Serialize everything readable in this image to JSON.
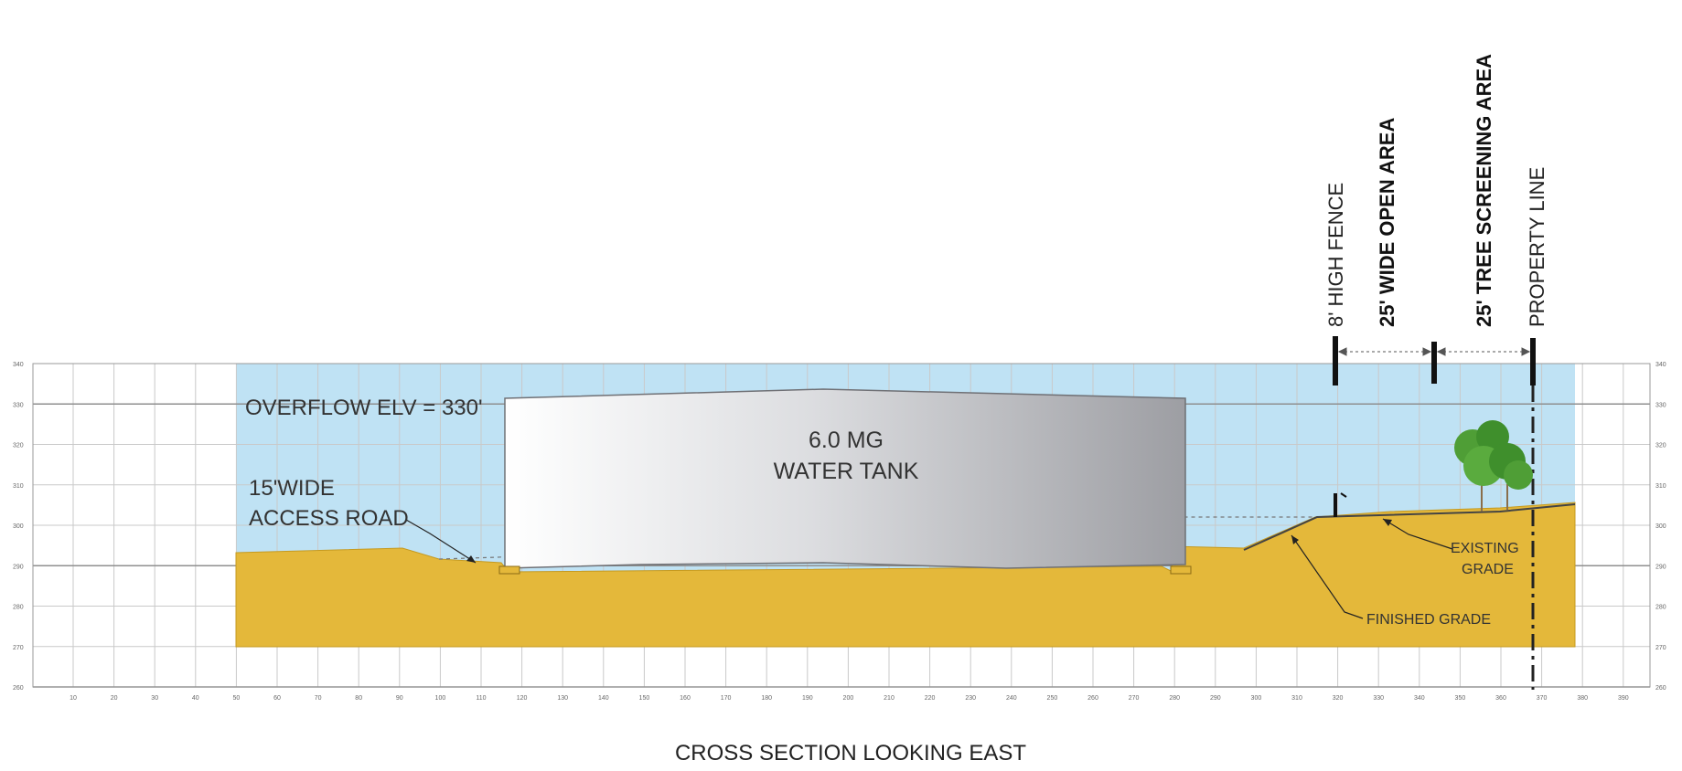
{
  "title": "CROSS SECTION LOOKING EAST",
  "tank": {
    "capacity": "6.0 MG",
    "name": "WATER TANK"
  },
  "labels": {
    "overflow": "OVERFLOW ELV = 330'",
    "access_road_1": "15'WIDE",
    "access_road_2": "ACCESS ROAD",
    "existing_grade_1": "EXISTING",
    "existing_grade_2": "GRADE",
    "finished_grade": "FINISHED GRADE"
  },
  "vertical_labels": {
    "fence": "8' HIGH FENCE",
    "open_area": "25' WIDE OPEN AREA",
    "tree_screening": "25' TREE SCREENING AREA",
    "property_line": "PROPERTY LINE"
  },
  "x_ticks": [
    "10",
    "20",
    "30",
    "40",
    "50",
    "60",
    "70",
    "80",
    "90",
    "100",
    "110",
    "120",
    "130",
    "140",
    "150",
    "160",
    "170",
    "180",
    "190",
    "200",
    "210",
    "220",
    "230",
    "240",
    "250",
    "260",
    "270",
    "280",
    "290",
    "300",
    "310",
    "320",
    "330",
    "340",
    "350",
    "360",
    "370",
    "380",
    "390"
  ],
  "y_ticks": [
    "340",
    "330",
    "320",
    "310",
    "300",
    "290",
    "280",
    "270",
    "260"
  ],
  "colors": {
    "sky": "#bfe2f4",
    "soil": "#e4b83a",
    "soil_edge": "#c59a20",
    "tank_dark": "#9d9ea3",
    "grid": "#c9c9c9",
    "grid_major": "#8f8f8f",
    "tree": "#3f8f2c"
  }
}
